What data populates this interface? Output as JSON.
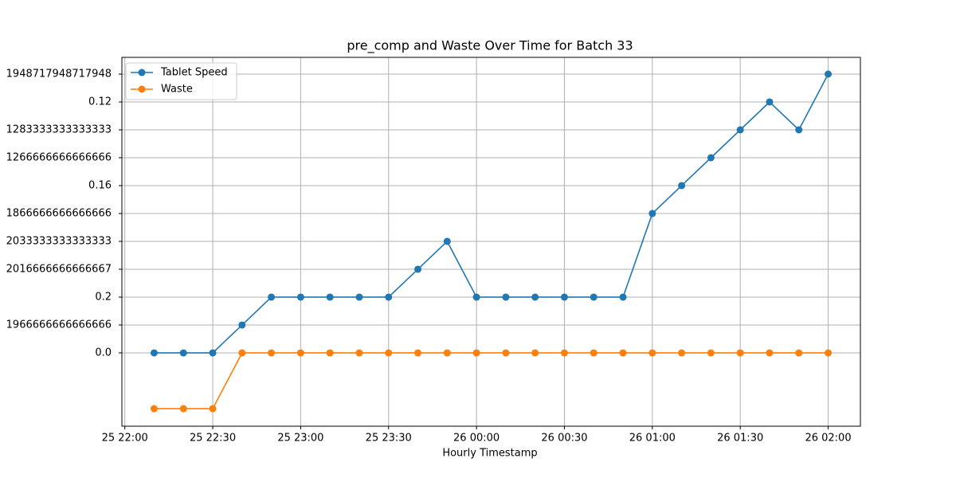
{
  "chart_data": {
    "type": "line",
    "title": "pre_comp and Waste Over Time for Batch 33",
    "x_label": "Hourly Timestamp",
    "x": [
      "25 22:10",
      "25 22:20",
      "25 22:30",
      "25 22:40",
      "25 22:50",
      "25 23:00",
      "25 23:10",
      "25 23:20",
      "25 23:30",
      "25 23:40",
      "25 23:50",
      "26 00:00",
      "26 00:10",
      "26 00:20",
      "26 00:30",
      "26 00:40",
      "26 00:50",
      "26 01:00",
      "26 01:10",
      "26 01:20",
      "26 01:30",
      "26 01:40",
      "26 01:50",
      "26 02:00"
    ],
    "xlim": [
      "25 21:59",
      "26 02:11"
    ],
    "xticks": [
      "25 22:00",
      "25 22:30",
      "25 23:00",
      "25 23:30",
      "26 00:00",
      "26 00:30",
      "26 01:00",
      "26 01:30",
      "26 02:00"
    ],
    "ylim": [
      -2.63,
      10.6
    ],
    "yticks": [
      {
        "value": 0,
        "label": "0.0"
      },
      {
        "value": 1,
        "label": "1966666666666666"
      },
      {
        "value": 2,
        "label": "0.2"
      },
      {
        "value": 3,
        "label": "2016666666666667"
      },
      {
        "value": 4,
        "label": "2033333333333333"
      },
      {
        "value": 5,
        "label": "1866666666666666"
      },
      {
        "value": 6,
        "label": "0.16"
      },
      {
        "value": 7,
        "label": "1266666666666666"
      },
      {
        "value": 8,
        "label": "1283333333333333"
      },
      {
        "value": 9,
        "label": "0.12"
      },
      {
        "value": 10,
        "label": "1948717948717948"
      }
    ],
    "grid": true,
    "legend": "upper left",
    "series": [
      {
        "name": "Tablet Speed",
        "color": "#1f77b4",
        "values": [
          0,
          0,
          0,
          1,
          2,
          2,
          2,
          2,
          2,
          3,
          4,
          2,
          2,
          2,
          2,
          2,
          2,
          5,
          6,
          7,
          8,
          9,
          8,
          10
        ]
      },
      {
        "name": "Waste",
        "color": "#ff7f0e",
        "values": [
          -2,
          -2,
          -2,
          0,
          0,
          0,
          0,
          0,
          0,
          0,
          0,
          0,
          0,
          0,
          0,
          0,
          0,
          0,
          0,
          0,
          0,
          0,
          0,
          0
        ]
      }
    ]
  }
}
